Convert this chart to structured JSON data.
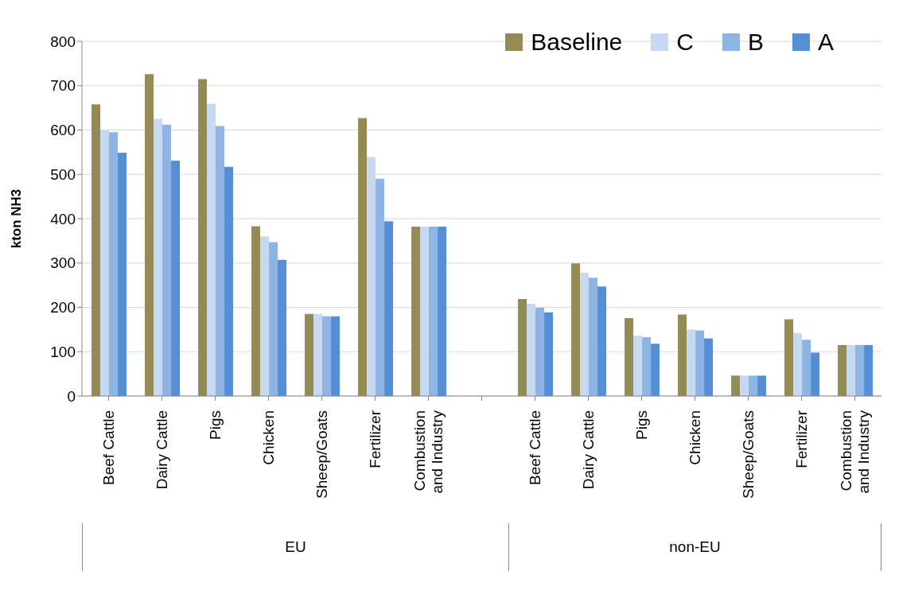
{
  "chart_data": {
    "type": "bar",
    "ylabel": "kton NH3",
    "categories": [
      "Beef Cattle",
      "Dairy Cattle",
      "Pigs",
      "Chicken",
      "Sheep/Goats",
      "Fertilizer",
      "Combustion and Industry",
      null,
      "Beef Cattle",
      "Dairy Cattle",
      "Pigs",
      "Chicken",
      "Sheep/Goats",
      "Fertilizer",
      "Combustion and Industry"
    ],
    "series": [
      {
        "name": "Baseline",
        "color": "#948a54",
        "values": [
          658,
          726,
          715,
          383,
          185,
          627,
          382,
          null,
          219,
          299,
          176,
          184,
          46,
          173,
          115
        ]
      },
      {
        "name": "C",
        "color": "#c6d9f1",
        "values": [
          600,
          625,
          659,
          360,
          185,
          539,
          382,
          null,
          208,
          278,
          136,
          150,
          46,
          142,
          115
        ]
      },
      {
        "name": "B",
        "color": "#8eb4e3",
        "values": [
          595,
          612,
          609,
          347,
          180,
          490,
          382,
          null,
          199,
          267,
          133,
          148,
          46,
          127,
          115
        ]
      },
      {
        "name": "A",
        "color": "#558ed5",
        "values": [
          549,
          531,
          517,
          307,
          180,
          394,
          382,
          null,
          189,
          247,
          118,
          130,
          46,
          98,
          115
        ]
      }
    ],
    "ylim": [
      0,
      800
    ],
    "yticks": [
      0,
      100,
      200,
      300,
      400,
      500,
      600,
      700,
      800
    ],
    "grid": "y",
    "legend": "top right",
    "annotations": [
      "EU",
      "non-EU"
    ]
  }
}
